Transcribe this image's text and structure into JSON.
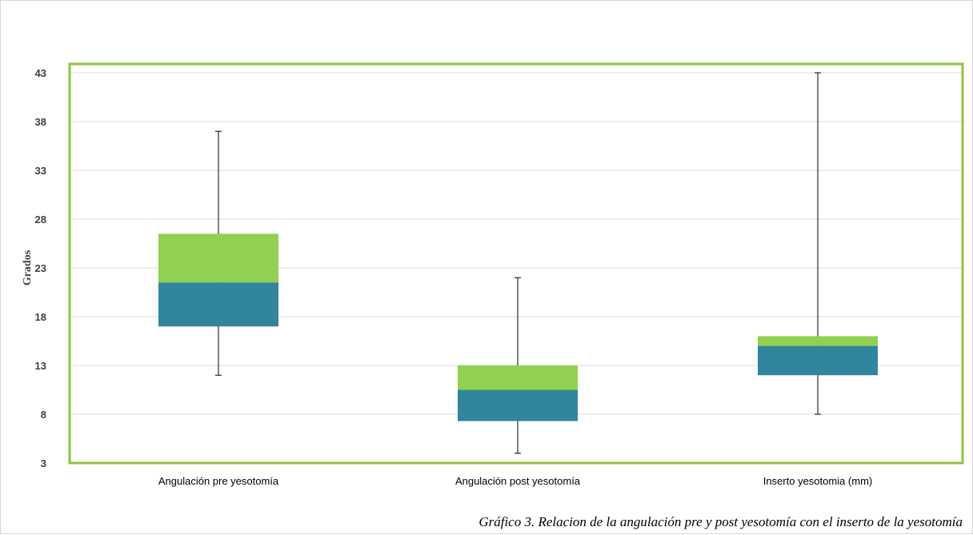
{
  "colors": {
    "plot_border": "#8CC63F",
    "upper_box": "#92D050",
    "lower_box": "#31859C",
    "whisker": "#000000",
    "grid": "#d9d9d9"
  },
  "caption": "Gráfico 3. Relacion de la angulación pre y post yesotomía con el inserto de la yesotomía",
  "chart_data": {
    "type": "boxplot",
    "ylabel": "Grados",
    "xlabel": "",
    "ylim": [
      3,
      43
    ],
    "yticks": [
      3,
      8,
      13,
      18,
      23,
      28,
      33,
      38,
      43
    ],
    "grid": true,
    "categories": [
      "Angulación pre yesotomía",
      "Angulación post yesotomía",
      "Inserto yesotomia (mm)"
    ],
    "boxes": [
      {
        "min": 12,
        "q1": 17,
        "median": 21.5,
        "q3": 26.5,
        "max": 37
      },
      {
        "min": 4,
        "q1": 7.3,
        "median": 10.5,
        "q3": 13,
        "max": 22
      },
      {
        "min": 8,
        "q1": 12,
        "median": 15,
        "q3": 16,
        "max": 43
      }
    ]
  }
}
